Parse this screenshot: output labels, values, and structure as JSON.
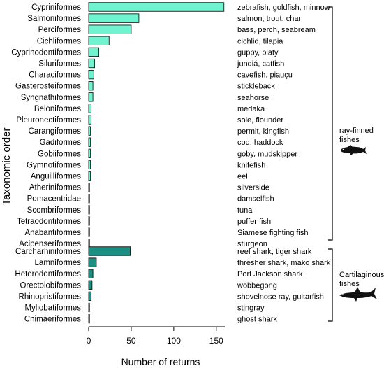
{
  "chart_data": {
    "type": "bar",
    "orientation": "horizontal",
    "xlabel": "Number of returns",
    "ylabel": "Taxonomic order",
    "xlim": [
      0,
      160
    ],
    "xticks": [
      0,
      50,
      100,
      150
    ],
    "grid": false,
    "colors": {
      "ray_finned": "#6ff4cf",
      "cartilaginous": "#1b8f82",
      "edge": "#000000"
    },
    "categories": [
      "Cypriniformes",
      "Salmoniformes",
      "Perciformes",
      "Cichliformes",
      "Cyprinodontiformes",
      "Siluriformes",
      "Characiformes",
      "Gasterosteiformes",
      "Syngnathiformes",
      "Beloniformes",
      "Pleuronectiformes",
      "Carangiformes",
      "Gadiformes",
      "Gobiiformes",
      "Gymnotiformes",
      "Anguilliformes",
      "Atheriniformes",
      "Pomacentridae",
      "Scombriformes",
      "Tetraodontiformes",
      "Anabantiformes",
      "Acipenseriformes",
      "Carcharhiniformes",
      "Lamniformes",
      "Heterodontiformes",
      "Orectolobiformes",
      "Rhinopristiformes",
      "Myliobatiformes",
      "Chimaeriformes"
    ],
    "values": [
      159,
      59,
      50,
      24,
      12,
      7,
      6,
      5,
      5,
      3,
      3,
      2,
      2,
      2,
      2,
      2,
      1,
      1,
      1,
      1,
      1,
      1,
      49,
      9,
      5,
      4,
      3,
      1,
      1
    ],
    "groups": [
      "ray_finned",
      "ray_finned",
      "ray_finned",
      "ray_finned",
      "ray_finned",
      "ray_finned",
      "ray_finned",
      "ray_finned",
      "ray_finned",
      "ray_finned",
      "ray_finned",
      "ray_finned",
      "ray_finned",
      "ray_finned",
      "ray_finned",
      "ray_finned",
      "ray_finned",
      "ray_finned",
      "ray_finned",
      "ray_finned",
      "ray_finned",
      "ray_finned",
      "cartilaginous",
      "cartilaginous",
      "cartilaginous",
      "cartilaginous",
      "cartilaginous",
      "cartilaginous",
      "cartilaginous"
    ],
    "annotations": [
      "zebrafish, goldfish, minnow",
      "salmon, trout, char",
      "bass, perch, seabream",
      "cichlid, tilapia",
      "guppy, platy",
      "jundiá, catfish",
      "cavefish, piauçu",
      "stickleback",
      "seahorse",
      "medaka",
      "sole, flounder",
      "permit, kingfish",
      "cod, haddock",
      "goby, mudskipper",
      "knifefish",
      "eel",
      "silverside",
      "damselfish",
      "tuna",
      "puffer fish",
      "Siamese fighting fish",
      "sturgeon",
      "reef shark, tiger shark",
      "thresher shark, mako shark",
      "Port Jackson shark",
      "wobbegong",
      "shovelnose ray, guitarfish",
      "stingray",
      "ghost shark"
    ],
    "group_labels": {
      "ray_finned": [
        "ray-finned",
        "fishes"
      ],
      "cartilaginous": [
        "Cartilaginous",
        "fishes"
      ]
    }
  }
}
